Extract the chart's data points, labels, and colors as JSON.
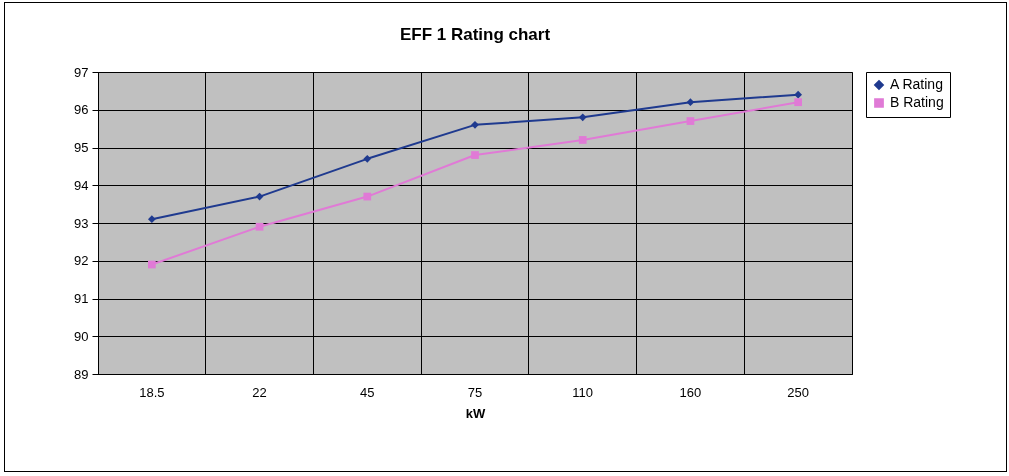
{
  "chart_data": {
    "type": "line",
    "title": "EFF 1 Rating chart",
    "xlabel": "kW",
    "categories": [
      "18.5",
      "22",
      "45",
      "75",
      "110",
      "160",
      "250"
    ],
    "series": [
      {
        "name": "A Rating",
        "color": "#1f3a8f",
        "marker": "diamond",
        "values": [
          93.1,
          93.7,
          94.7,
          95.6,
          95.8,
          96.2,
          96.4
        ]
      },
      {
        "name": "B Rating",
        "color": "#e07ad6",
        "marker": "square",
        "values": [
          91.9,
          92.9,
          93.7,
          94.8,
          95.2,
          95.7,
          96.2
        ]
      }
    ],
    "ylim": [
      89,
      97
    ],
    "yticks": [
      89,
      90,
      91,
      92,
      93,
      94,
      95,
      96,
      97
    ],
    "grid": true,
    "legend": "right"
  }
}
